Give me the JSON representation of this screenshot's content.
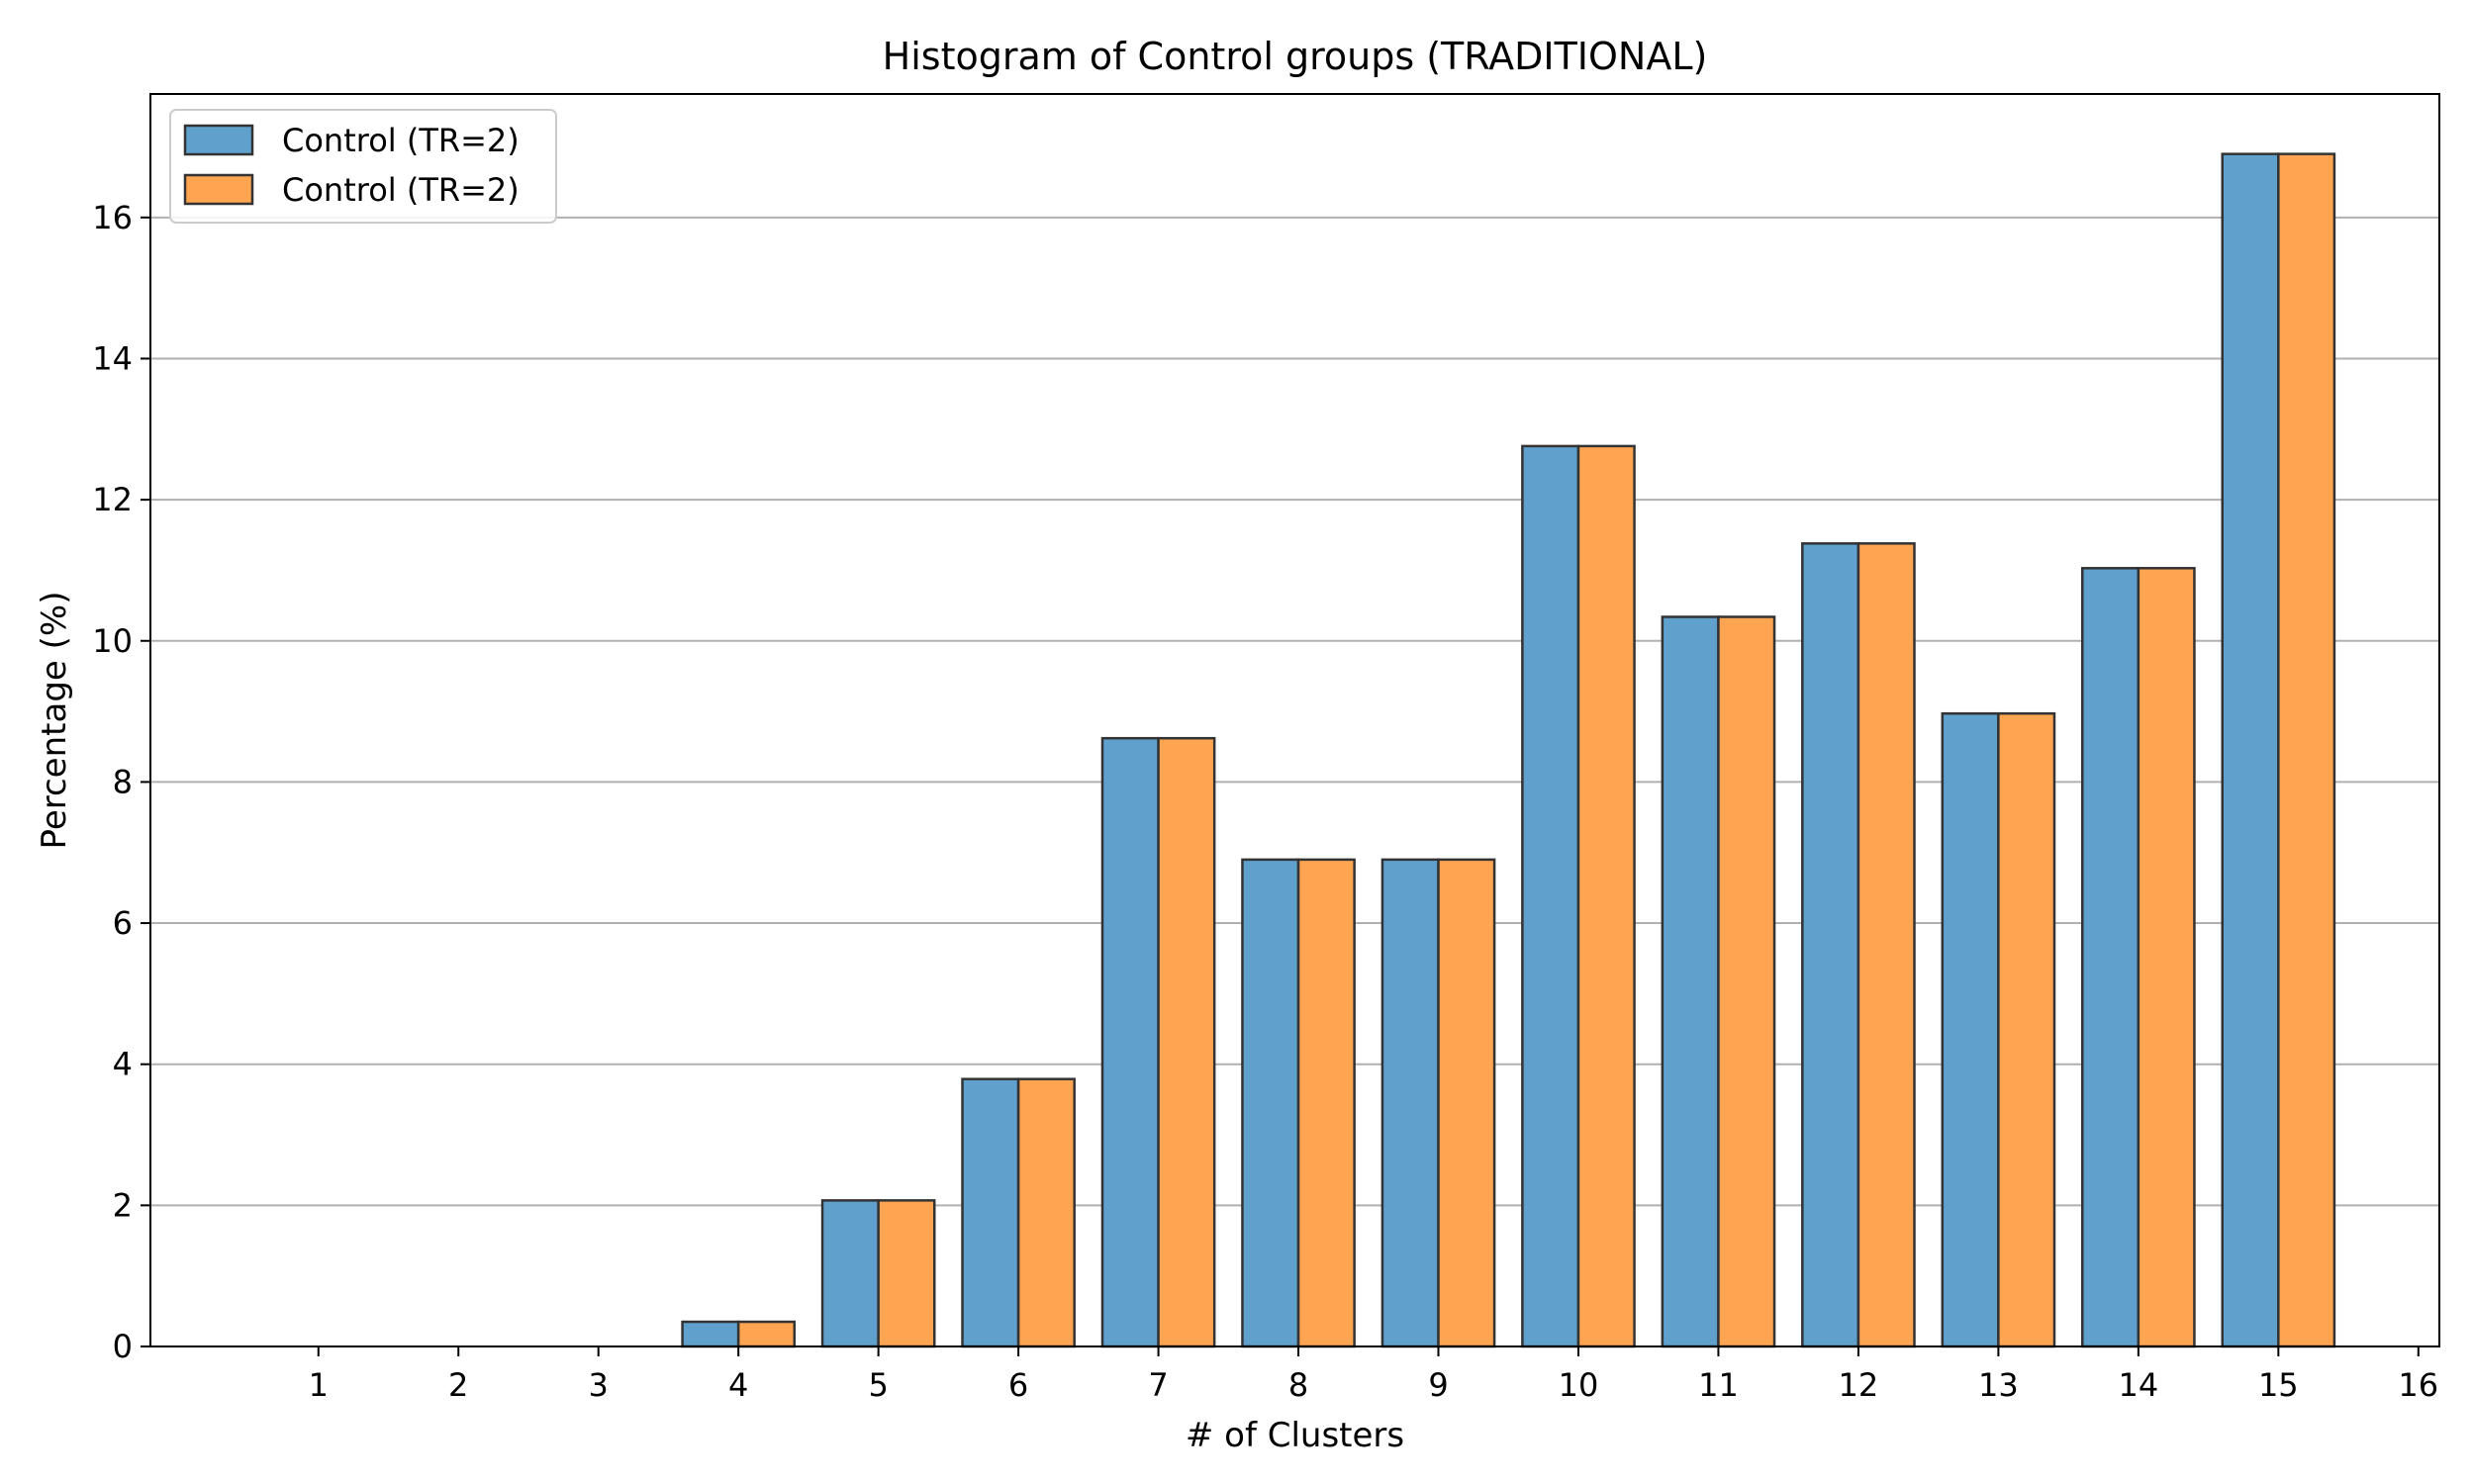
{
  "chart_data": {
    "type": "bar",
    "title": "Histogram of Control groups (TRADITIONAL)",
    "xlabel": "# of Clusters",
    "ylabel": "Percentage (%)",
    "categories": [
      1,
      2,
      3,
      4,
      5,
      6,
      7,
      8,
      9,
      10,
      11,
      12,
      13,
      14,
      15
    ],
    "x_ticks": [
      "1",
      "2",
      "3",
      "4",
      "5",
      "6",
      "7",
      "8",
      "9",
      "10",
      "11",
      "12",
      "13",
      "14",
      "15",
      "16"
    ],
    "y_ticks": [
      "0",
      "2",
      "4",
      "6",
      "8",
      "10",
      "12",
      "14",
      "16"
    ],
    "xlim": [
      -0.2,
      16.15
    ],
    "ylim": [
      0,
      17.75
    ],
    "grid": "y",
    "legend_position": "top-left",
    "series": [
      {
        "name": "Control (TR=2)",
        "color": "#5fa0cd",
        "values": [
          0,
          0,
          0,
          0.35,
          2.07,
          3.79,
          8.62,
          6.9,
          6.9,
          12.76,
          10.34,
          11.38,
          8.97,
          11.03,
          16.9
        ]
      },
      {
        "name": "Control (TR=2)",
        "color": "#ffa552",
        "values": [
          0,
          0,
          0,
          0.35,
          2.07,
          3.79,
          8.62,
          6.9,
          6.9,
          12.76,
          10.34,
          11.38,
          8.97,
          11.03,
          16.9
        ]
      }
    ]
  }
}
